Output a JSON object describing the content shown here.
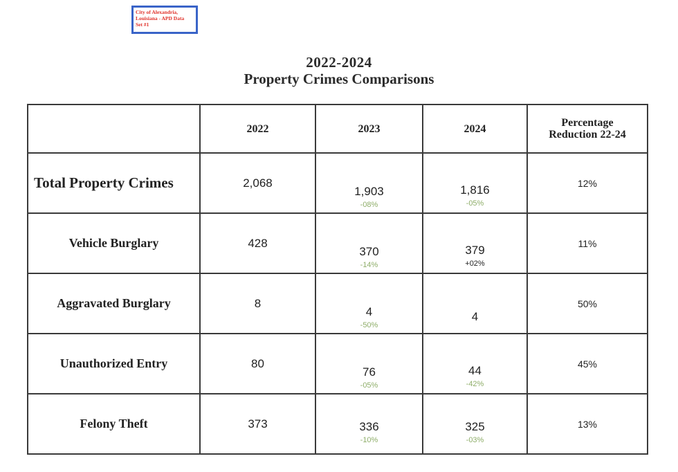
{
  "stamp": {
    "lines": [
      "City of Alexandria,",
      "Louisiana - APD Data",
      "Set #1"
    ]
  },
  "title": {
    "line1": "2022-2024",
    "line2": "Property Crimes Comparisons"
  },
  "table": {
    "headers": [
      "",
      "2022",
      "2023",
      "2024",
      "Percentage",
      "Reduction 22-24"
    ],
    "rows": [
      {
        "label": "Total Property Crimes",
        "y2022": "2,068",
        "y2023": "1,903",
        "y2023_change": "-08%",
        "y2024": "1,816",
        "y2024_change": "-05%",
        "reduction": "12%"
      },
      {
        "label": "Vehicle Burglary",
        "y2022": "428",
        "y2023": "370",
        "y2023_change": "-14%",
        "y2024": "379",
        "y2024_change": "+02%",
        "reduction": "11%"
      },
      {
        "label": "Aggravated Burglary",
        "y2022": "8",
        "y2023": "4",
        "y2023_change": "-50%",
        "y2024": "4",
        "y2024_change": "",
        "reduction": "50%"
      },
      {
        "label": "Unauthorized Entry",
        "y2022": "80",
        "y2023": "76",
        "y2023_change": "-05%",
        "y2024": "44",
        "y2024_change": "-42%",
        "reduction": "45%"
      },
      {
        "label": "Felony Theft",
        "y2022": "373",
        "y2023": "336",
        "y2023_change": "-10%",
        "y2024": "325",
        "y2024_change": "-03%",
        "reduction": "13%"
      }
    ]
  },
  "colors": {
    "stamp_border": "#3a64c8",
    "stamp_text": "#e0312a",
    "decrease_text": "#8fae6a",
    "increase_text": "#222222",
    "grid_lines": "#3a3a3a"
  }
}
